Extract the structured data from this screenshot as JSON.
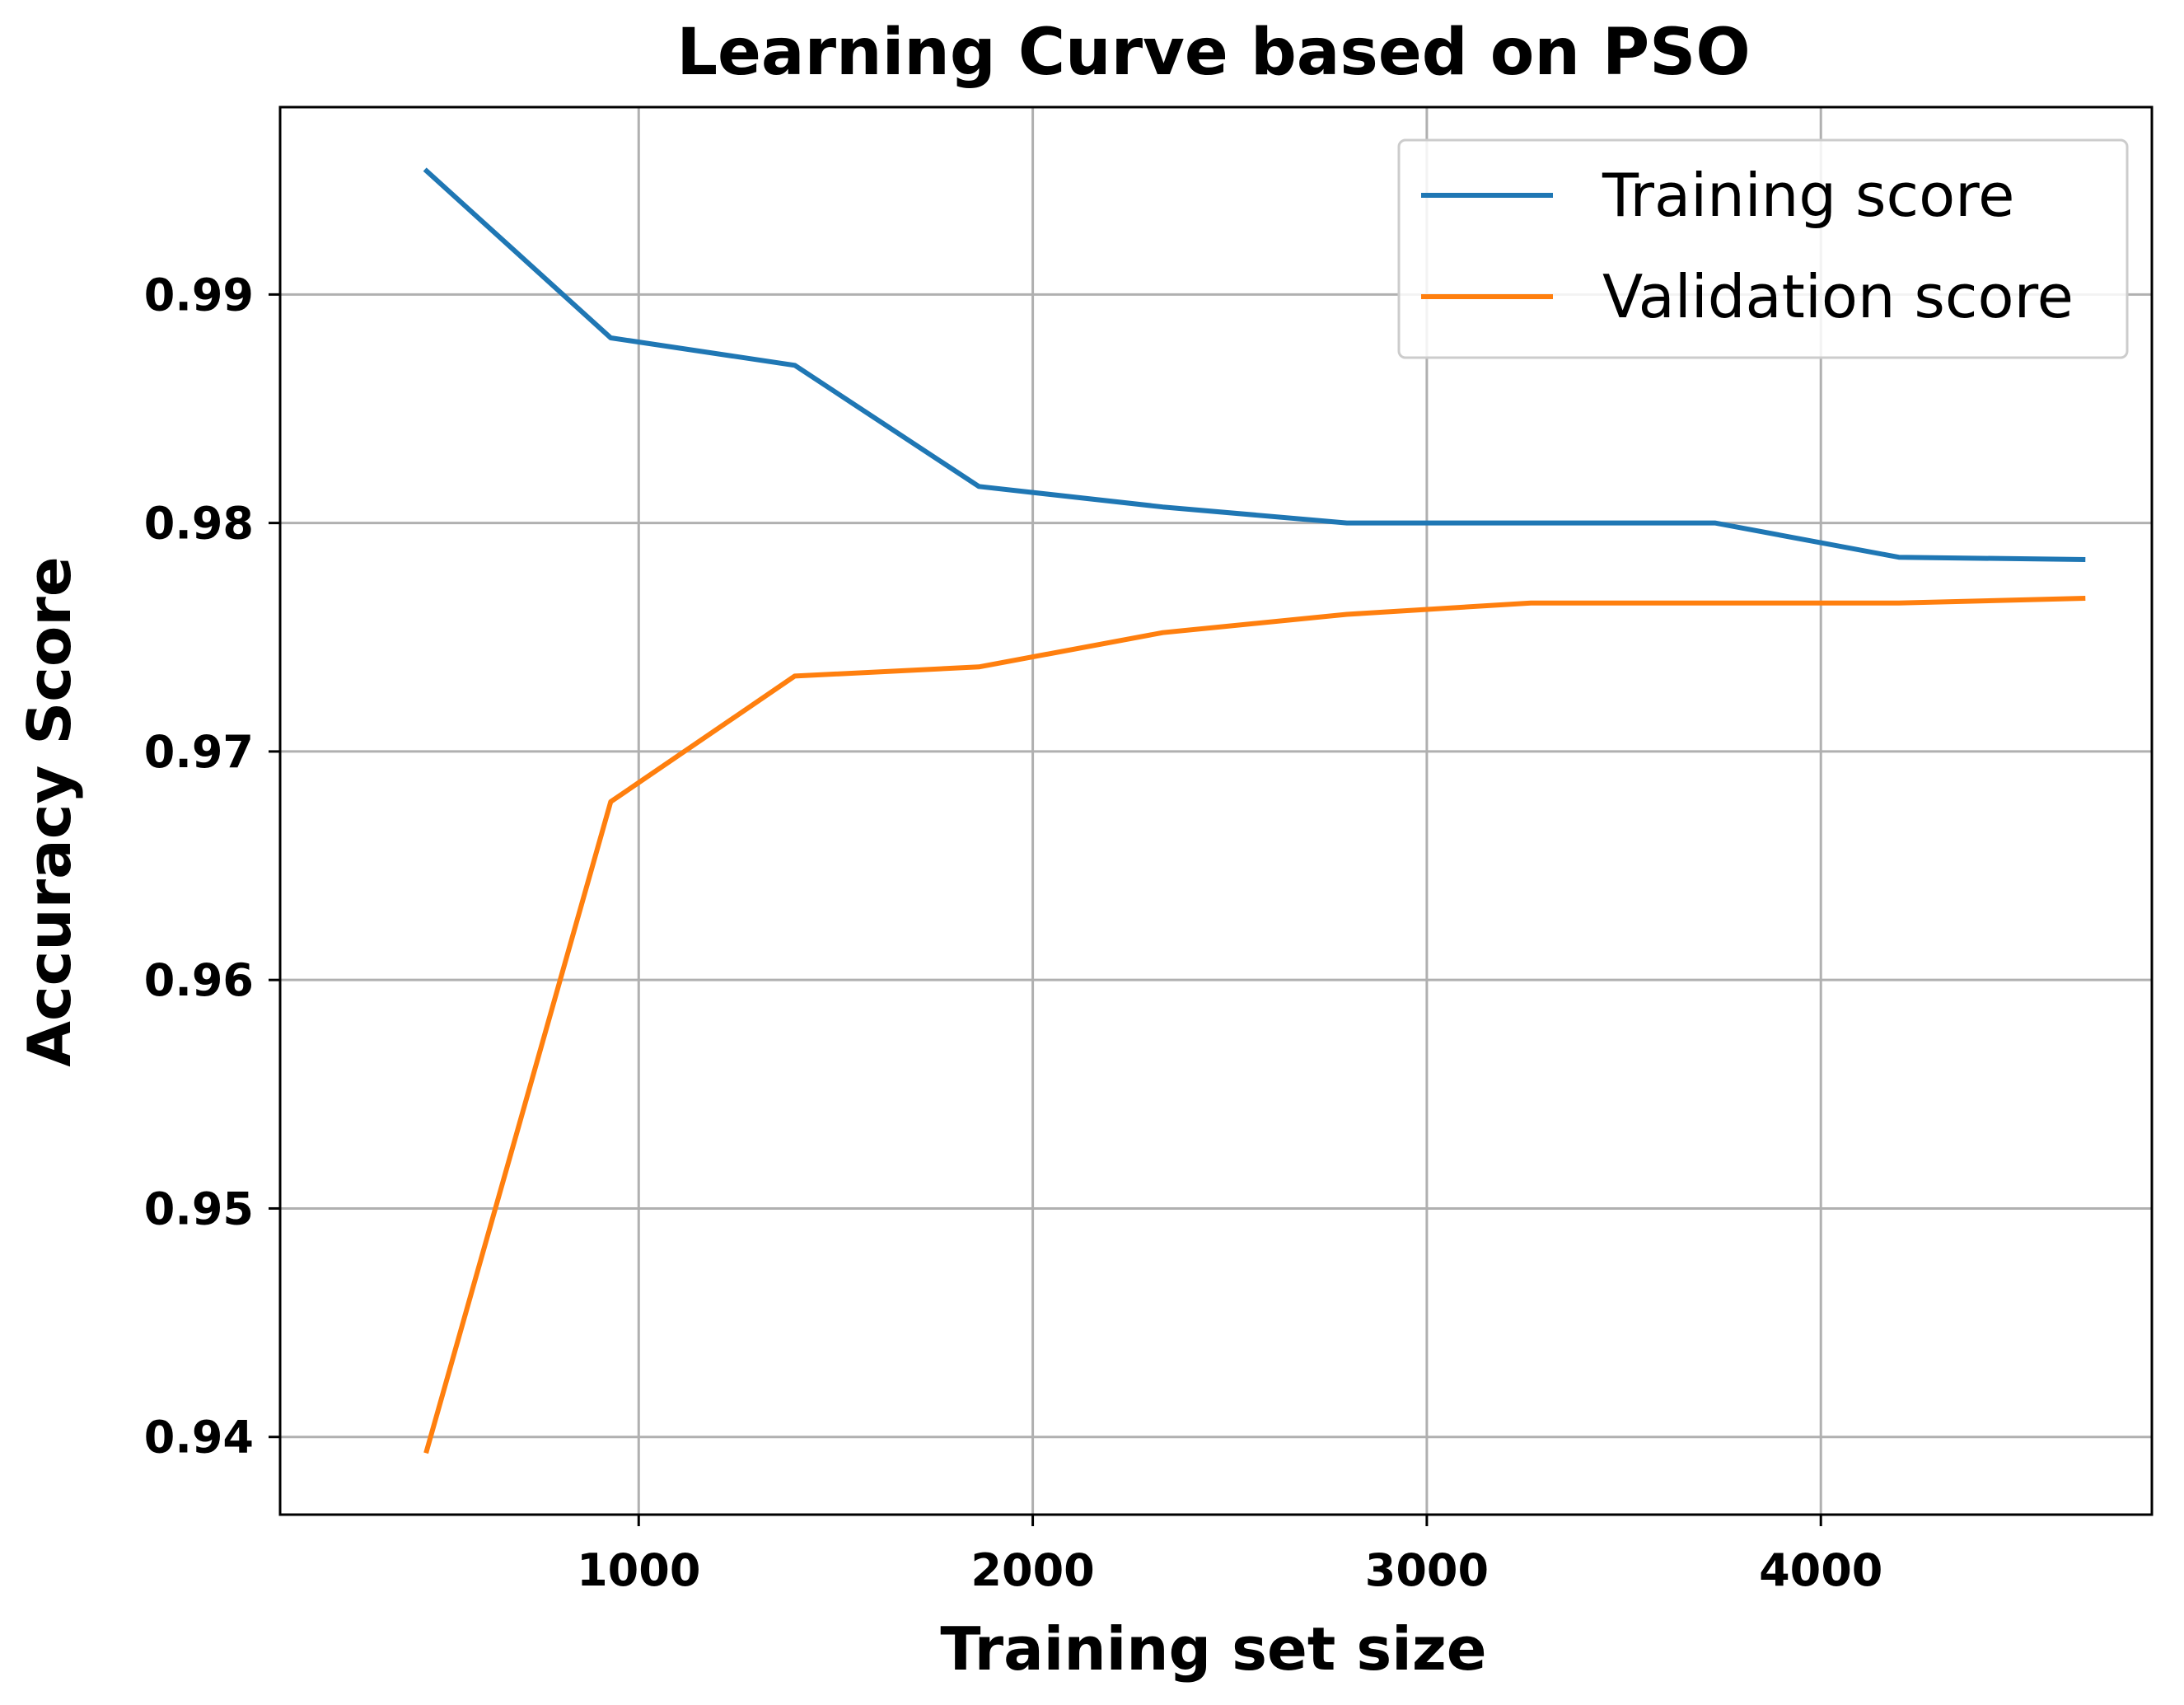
{
  "chart_data": {
    "type": "line",
    "title": "Learning Curve based on PSO",
    "xlabel": "Training set size",
    "ylabel": "Accuracy Score",
    "xlim": [
      90,
      4840
    ],
    "ylim": [
      0.9366,
      0.9982
    ],
    "xticks": [
      1000,
      2000,
      3000,
      4000
    ],
    "yticks": [
      0.94,
      0.95,
      0.96,
      0.97,
      0.98,
      0.99
    ],
    "xtick_labels": [
      "1000",
      "2000",
      "3000",
      "4000"
    ],
    "ytick_labels": [
      "0.94",
      "0.95",
      "0.96",
      "0.97",
      "0.98",
      "0.99"
    ],
    "grid": true,
    "legend_position": "top-right",
    "x": [
      462,
      929,
      1396,
      1863,
      2330,
      2797,
      3264,
      3731,
      4198,
      4665
    ],
    "series": [
      {
        "name": "Training score",
        "color": "#1f77b4",
        "values": [
          0.9954,
          0.9881,
          0.9869,
          0.9816,
          0.9807,
          0.98,
          0.98,
          0.98,
          0.9785,
          0.9784
        ]
      },
      {
        "name": "Validation score",
        "color": "#ff7f0e",
        "values": [
          0.9394,
          0.9678,
          0.9733,
          0.9737,
          0.9752,
          0.976,
          0.9765,
          0.9765,
          0.9765,
          0.9767
        ]
      }
    ]
  }
}
